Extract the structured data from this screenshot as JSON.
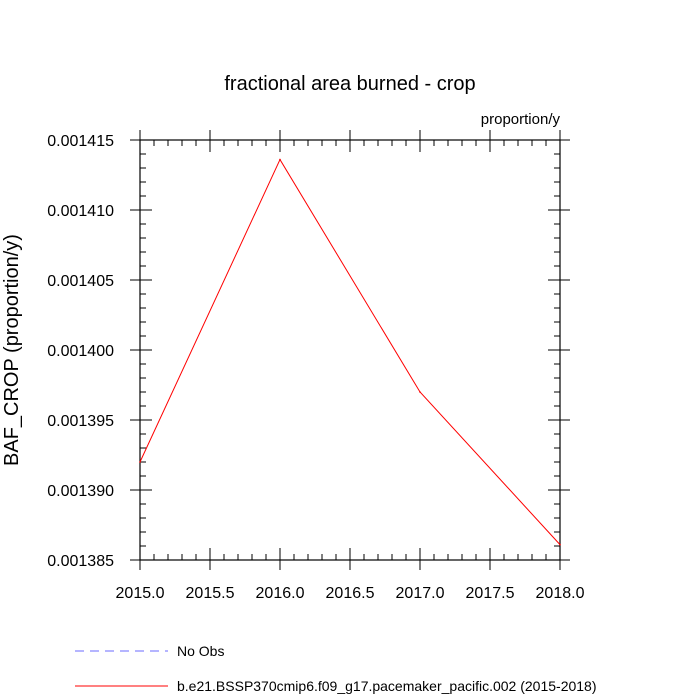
{
  "chart_data": {
    "type": "line",
    "title": "fractional area burned - crop",
    "units": "proportion/y",
    "ylabel": "BAF_CROP  (proportion/y)",
    "xlabel": "",
    "xlim": [
      2015.0,
      2018.0
    ],
    "ylim": [
      0.001385,
      0.001415
    ],
    "xticks": [
      "2015.0",
      "2015.5",
      "2016.0",
      "2016.5",
      "2017.0",
      "2017.5",
      "2018.0"
    ],
    "yticks": [
      "0.001385",
      "0.001390",
      "0.001395",
      "0.001400",
      "0.001405",
      "0.001410",
      "0.001415"
    ],
    "series": [
      {
        "name": "b.e21.BSSP370cmip6.f09_g17.pacemaker_pacific.002 (2015-2018)",
        "color": "#ff0000",
        "dash": "solid",
        "x": [
          2015,
          2016,
          2017,
          2018
        ],
        "y": [
          0.001392,
          0.0014136,
          0.001397,
          0.0013861
        ]
      }
    ],
    "legend": [
      {
        "label": "No Obs",
        "color": "#6b6bff",
        "dash": "dashed"
      },
      {
        "label": "b.e21.BSSP370cmip6.f09_g17.pacemaker_pacific.002 (2015-2018)",
        "color": "#ff0000",
        "dash": "solid"
      }
    ],
    "legend_position": "bottom-left",
    "grid": false
  }
}
